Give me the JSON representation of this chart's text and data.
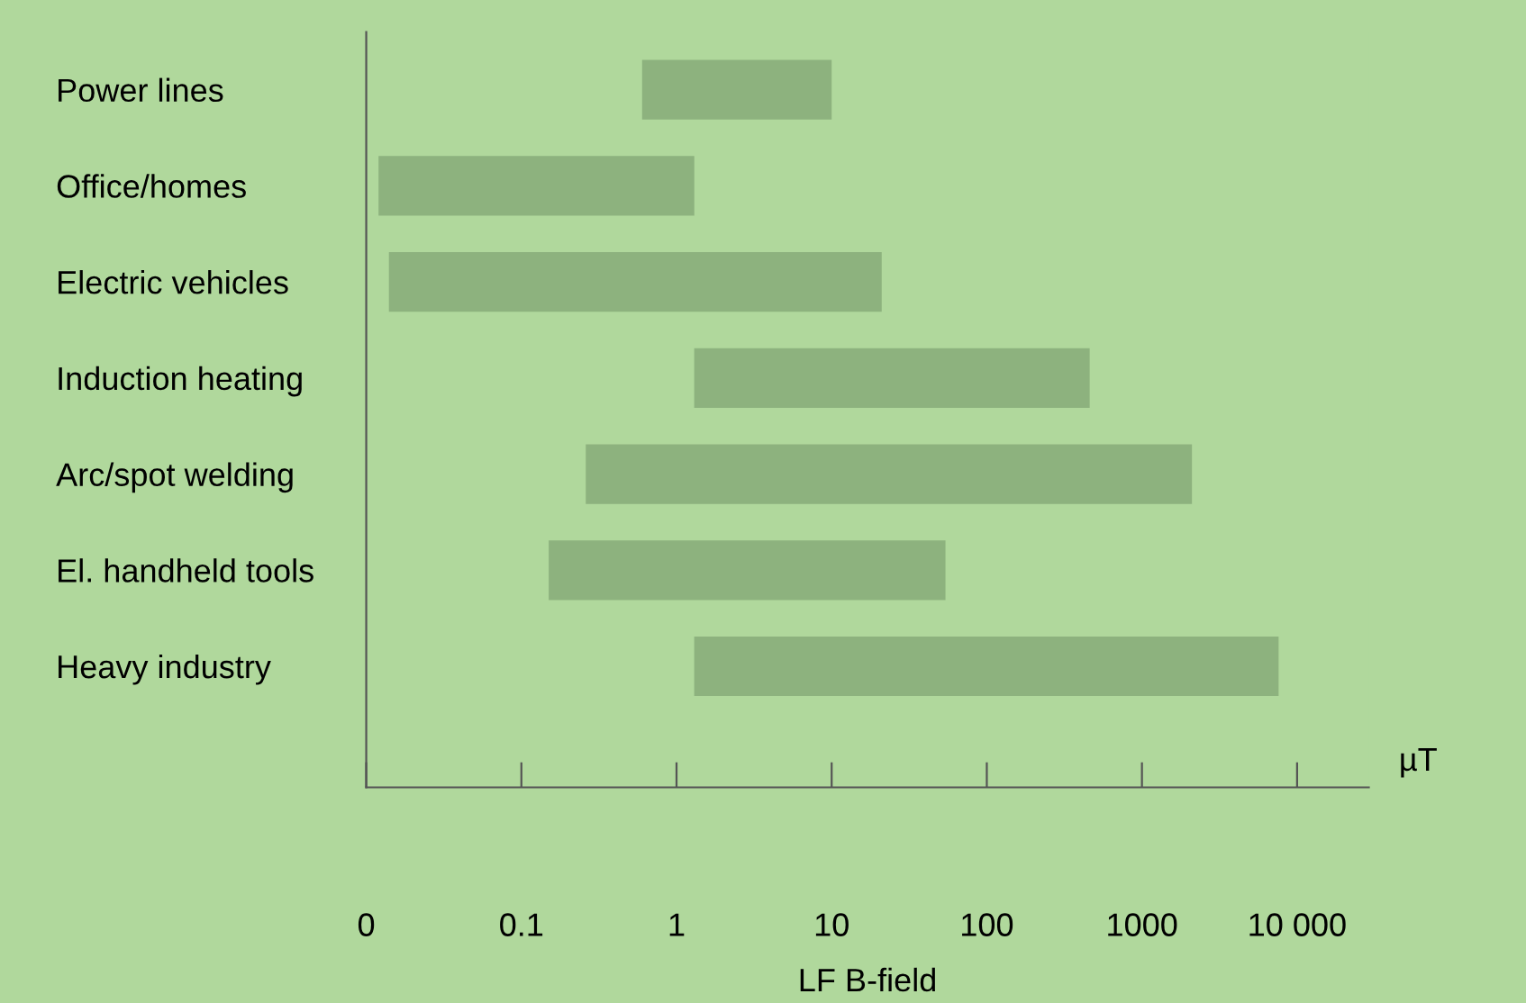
{
  "chart_data": {
    "type": "bar",
    "orientation": "horizontal",
    "log": "x",
    "categories": [
      "Power lines",
      "Office/homes",
      "Electric vehicles",
      "Induction heating",
      "Arc/spot welding",
      "El. handheld tools",
      "Heavy industry"
    ],
    "base": [
      0.6,
      0.012,
      0.014,
      1.3,
      0.26,
      0.15,
      1.3
    ],
    "values": [
      9.4,
      1.29,
      21,
      459,
      2100,
      54,
      7600
    ],
    "color": "#8db27e",
    "xlim": [
      0.01,
      29000
    ],
    "xticks": [
      {
        "value": 0.01,
        "label": "0"
      },
      0.1,
      1,
      10,
      100,
      1000,
      {
        "value": 10000,
        "label": "10 000"
      }
    ],
    "xlabel": "LF B-field",
    "annotations": [
      "µT"
    ],
    "grid": false,
    "legend": false
  }
}
